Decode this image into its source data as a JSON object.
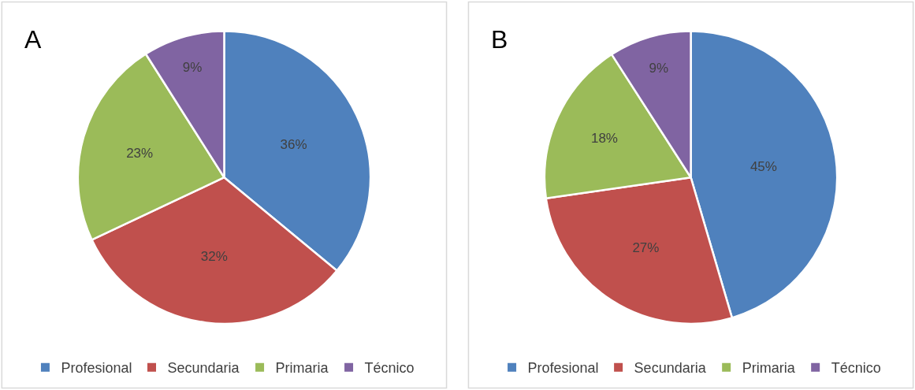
{
  "chart_data": [
    {
      "type": "pie",
      "title": "A",
      "categories": [
        "Profesional",
        "Secundaria",
        "Primaria",
        "Técnico"
      ],
      "values": [
        36,
        32,
        23,
        9
      ],
      "colors": [
        "#4f81bd",
        "#c0504d",
        "#9bbb59",
        "#8064a2"
      ],
      "value_labels": [
        "36%",
        "32%",
        "23%",
        "9%"
      ],
      "legend": "bottom"
    },
    {
      "type": "pie",
      "title": "B",
      "categories": [
        "Profesional",
        "Secundaria",
        "Primaria",
        "Técnico"
      ],
      "values": [
        45,
        27,
        18,
        9
      ],
      "colors": [
        "#4f81bd",
        "#c0504d",
        "#9bbb59",
        "#8064a2"
      ],
      "value_labels": [
        "45%",
        "27%",
        "18%",
        "9%"
      ],
      "legend": "bottom"
    }
  ]
}
